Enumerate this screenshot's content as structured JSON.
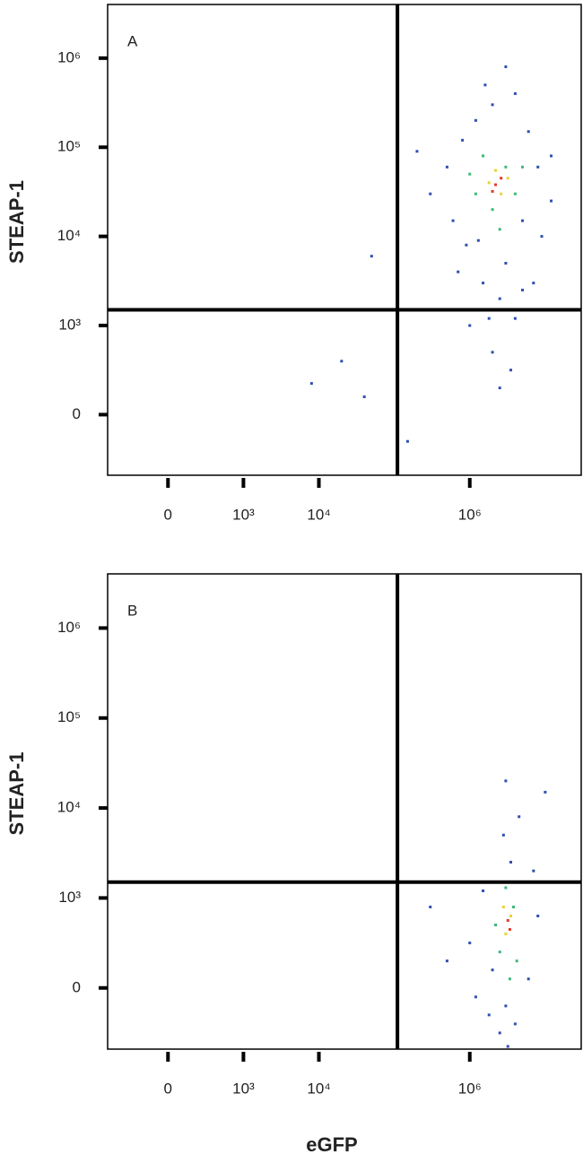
{
  "chart_data": [
    {
      "type": "scatter",
      "panel_label": "A",
      "y_label": "STEAP-1",
      "scale": "biexponential",
      "xlim": [
        -800,
        30000000
      ],
      "ylim": [
        -680,
        4000000
      ],
      "xticks": [
        0,
        {
          "value": 1000,
          "label": "10³"
        },
        {
          "value": 10000,
          "label": "10⁴"
        },
        {
          "value": 1000000,
          "label": "10⁶"
        }
      ],
      "yticks": [
        0,
        {
          "value": 1000,
          "label": "10³"
        },
        {
          "value": 10000,
          "label": "10⁴"
        },
        {
          "value": 100000,
          "label": "10⁵"
        },
        {
          "value": 1000000,
          "label": "10⁶"
        }
      ],
      "gate_x": 110000,
      "gate_y": 1500,
      "series": [
        {
          "color": "#2f4fb0",
          "x": [
            300000,
            500000,
            800000,
            1200000,
            2000000,
            4000000,
            6000000,
            8000000,
            5000000,
            3000000,
            1500000,
            900000,
            600000,
            2500000,
            4000000,
            1000000,
            2000000,
            3500000,
            7000000,
            12000000,
            12000000,
            200000,
            700000,
            5000000,
            1800000,
            2500000,
            1300000,
            9000000,
            3000000,
            1600000,
            50000,
            20000,
            8000,
            40000,
            150000
          ],
          "y": [
            30000,
            60000,
            120000,
            200000,
            300000,
            400000,
            150000,
            60000,
            15000,
            5000,
            3000,
            8000,
            15000,
            2000,
            1200,
            1000,
            700,
            500,
            3000,
            25000,
            80000,
            90000,
            4000,
            2500,
            1200,
            300,
            9000,
            10000,
            800000,
            500000,
            6000,
            600,
            350,
            200,
            -300
          ]
        },
        {
          "color": "#3cb878",
          "x": [
            1200000,
            2000000,
            3000000,
            4000000,
            1500000,
            2500000,
            1000000,
            5000000
          ],
          "y": [
            30000,
            20000,
            60000,
            30000,
            80000,
            12000,
            50000,
            60000
          ]
        },
        {
          "color": "#e8d23a",
          "x": [
            1800000,
            2600000,
            2200000,
            3200000
          ],
          "y": [
            40000,
            30000,
            55000,
            45000
          ]
        },
        {
          "color": "#e33a2a",
          "x": [
            2200000,
            2600000,
            2000000
          ],
          "y": [
            38000,
            45000,
            32000
          ]
        }
      ]
    },
    {
      "type": "scatter",
      "panel_label": "B",
      "y_label": "STEAP-1",
      "x_label": "eGFP",
      "scale": "biexponential",
      "xlim": [
        -800,
        30000000
      ],
      "ylim": [
        -680,
        4000000
      ],
      "xticks": [
        0,
        {
          "value": 1000,
          "label": "10³"
        },
        {
          "value": 10000,
          "label": "10⁴"
        },
        {
          "value": 1000000,
          "label": "10⁶"
        }
      ],
      "yticks": [
        0,
        {
          "value": 1000,
          "label": "10³"
        },
        {
          "value": 10000,
          "label": "10⁴"
        },
        {
          "value": 100000,
          "label": "10⁵"
        },
        {
          "value": 1000000,
          "label": "10⁶"
        }
      ],
      "gate_x": 110000,
      "gate_y": 1500,
      "series": [
        {
          "color": "#2f4fb0",
          "x": [
            1000000,
            1500000,
            2000000,
            5000000,
            8000000,
            6000000,
            3000000,
            2500000,
            4000000,
            1200000,
            3500000,
            2800000,
            4500000,
            3000000,
            10000000,
            500000,
            300000,
            7000000,
            1800000,
            3200000
          ],
          "y": [
            500,
            1200,
            200,
            1500,
            800,
            100,
            -200,
            -500,
            -400,
            -100,
            2500,
            5000,
            8000,
            20000,
            15000,
            300,
            900,
            2000,
            -300,
            -650
          ]
        },
        {
          "color": "#3cb878",
          "x": [
            2500000,
            3800000,
            3000000,
            2200000,
            4200000,
            3400000
          ],
          "y": [
            400,
            900,
            1300,
            700,
            300,
            100
          ]
        },
        {
          "color": "#e8d23a",
          "x": [
            3000000,
            3500000,
            2800000
          ],
          "y": [
            600,
            800,
            900
          ]
        },
        {
          "color": "#e33a2a",
          "x": [
            3200000,
            3400000
          ],
          "y": [
            750,
            650
          ]
        }
      ]
    }
  ]
}
